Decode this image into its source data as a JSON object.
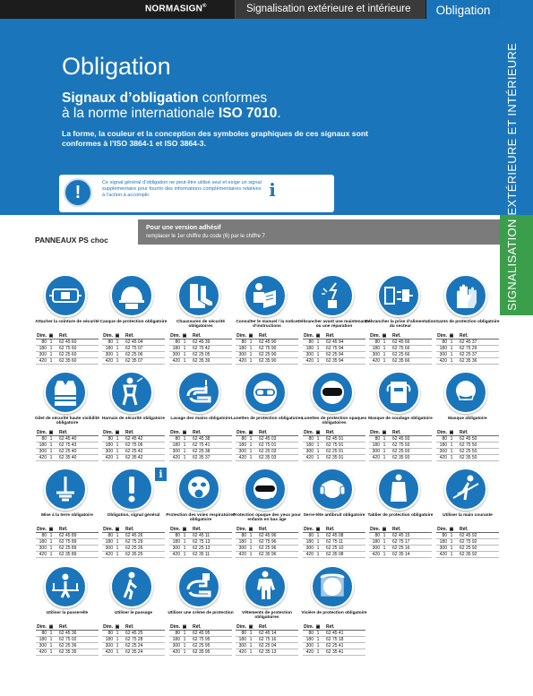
{
  "header": {
    "brand": "NORMASIGN",
    "brand_mark": "®",
    "subtitle": "Signalisation extérieure et intérieure",
    "category": "Obligation"
  },
  "hero": {
    "title": "Obligation",
    "sub_bold": "Signaux d’obligation",
    "sub_rest": " conformes",
    "sub_line2": "à la norme internationale ",
    "sub_iso": "ISO 7010",
    "sub_end": ".",
    "description": "La forme, la couleur et la conception des symboles graphiques de ces signaux sont conformes à l’ISO 3864-1 et ISO 3864-3."
  },
  "info": {
    "text": "Ce signal général d’obligation ne peut-être utilisé seul et exige un signal supplémentaire pour fournir des informations complémentaires relatives à l’action à accomplir.",
    "norme_1": "INFO",
    "norme_2": "NORME",
    "norme_3": "ISO 7010"
  },
  "sidebar": {
    "text": "SIGNALISATION EXTÉRIEURE ET INTÉRIEURE"
  },
  "strip": {
    "label": "PANNEAUX PS choc",
    "heading": "Pour une version adhésif",
    "sub": "remplacer le 1er chiffre du code (6) par le chiffre 7"
  },
  "table_headers": {
    "dim": "Dim.",
    "ref": "Réf."
  },
  "signs": [
    {
      "icon": "seatbelt-icon",
      "caption": "Attacher la ceinture de sécurité",
      "rows": [
        [
          "80",
          "1",
          "62 45 60"
        ],
        [
          "180",
          "1",
          "62 75 60"
        ],
        [
          "300",
          "1",
          "62 25 60"
        ],
        [
          "420",
          "1",
          "62 35 60"
        ]
      ]
    },
    {
      "icon": "helmet-icon",
      "caption": "Casque de protection obligatoire",
      "rows": [
        [
          "80",
          "1",
          "62 45 04"
        ],
        [
          "180",
          "1",
          "62 75 07"
        ],
        [
          "300",
          "1",
          "62 25 06"
        ],
        [
          "420",
          "1",
          "62 35 07"
        ]
      ]
    },
    {
      "icon": "boots-icon",
      "caption": "Chaussures de sécurité obligatoires",
      "rows": [
        [
          "80",
          "1",
          "62 45 39"
        ],
        [
          "180",
          "1",
          "62 75 42"
        ],
        [
          "300",
          "1",
          "62 25 05"
        ],
        [
          "420",
          "1",
          "62 35 39"
        ]
      ]
    },
    {
      "icon": "manual-icon",
      "caption": "Consulter le manuel / la notice d’instructions",
      "rows": [
        [
          "80",
          "1",
          "62 45 90"
        ],
        [
          "180",
          "1",
          "62 75 90"
        ],
        [
          "300",
          "1",
          "62 25 90"
        ],
        [
          "420",
          "1",
          "62 35 90"
        ]
      ]
    },
    {
      "icon": "disconnect-icon",
      "caption": "Débrancher avant une maintenance ou une réparation",
      "rows": [
        [
          "80",
          "1",
          "62 45 94"
        ],
        [
          "180",
          "1",
          "62 75 94"
        ],
        [
          "300",
          "1",
          "62 25 94"
        ],
        [
          "420",
          "1",
          "62 35 94"
        ]
      ]
    },
    {
      "icon": "unplug-icon",
      "caption": "Débrancher la prise d’alimentation du secteur",
      "rows": [
        [
          "80",
          "1",
          "62 45 66"
        ],
        [
          "180",
          "1",
          "62 75 66"
        ],
        [
          "300",
          "1",
          "62 25 66"
        ],
        [
          "420",
          "1",
          "62 35 66"
        ]
      ]
    },
    {
      "icon": "gloves-icon",
      "caption": "Gants de protection obligatoire",
      "rows": [
        [
          "80",
          "1",
          "62 45 37"
        ],
        [
          "180",
          "1",
          "62 75 29"
        ],
        [
          "300",
          "1",
          "62 25 37"
        ],
        [
          "420",
          "1",
          "62 35 36"
        ]
      ]
    },
    {
      "icon": "vest-icon",
      "caption": "Gilet de sécurité haute visibilité obligatoire",
      "rows": [
        [
          "80",
          "1",
          "62 45 40"
        ],
        [
          "180",
          "1",
          "62 75 43"
        ],
        [
          "300",
          "1",
          "62 25 40"
        ],
        [
          "420",
          "1",
          "62 35 40"
        ]
      ]
    },
    {
      "icon": "harness-icon",
      "caption": "Harnais de sécurité obligatoire",
      "rows": [
        [
          "80",
          "1",
          "62 45 42"
        ],
        [
          "180",
          "1",
          "62 75 06"
        ],
        [
          "300",
          "1",
          "62 25 42"
        ],
        [
          "420",
          "1",
          "62 35 42"
        ]
      ]
    },
    {
      "icon": "wash-hands-icon",
      "caption": "Lavage des mains obligatoire",
      "rows": [
        [
          "80",
          "1",
          "62 45 38"
        ],
        [
          "180",
          "1",
          "62 75 41"
        ],
        [
          "300",
          "1",
          "62 25 38"
        ],
        [
          "420",
          "1",
          "62 35 37"
        ]
      ]
    },
    {
      "icon": "goggles-icon",
      "caption": "Lunettes de protection obligatoires",
      "rows": [
        [
          "80",
          "1",
          "62 45 03"
        ],
        [
          "180",
          "1",
          "62 75 01"
        ],
        [
          "300",
          "1",
          "62 25 03"
        ],
        [
          "420",
          "1",
          "62 35 03"
        ]
      ]
    },
    {
      "icon": "opaque-goggles-icon",
      "caption": "Lunettes de protection opaques obligatoires",
      "rows": [
        [
          "80",
          "1",
          "62 45 91"
        ],
        [
          "180",
          "1",
          "62 75 91"
        ],
        [
          "300",
          "1",
          "62 25 91"
        ],
        [
          "420",
          "1",
          "62 35 91"
        ]
      ]
    },
    {
      "icon": "welding-mask-icon",
      "caption": "Masque de soudage obligatoire",
      "rows": [
        [
          "80",
          "1",
          "62 45 93"
        ],
        [
          "180",
          "1",
          "62 75 93"
        ],
        [
          "300",
          "1",
          "62 25 93"
        ],
        [
          "420",
          "1",
          "62 35 93"
        ]
      ]
    },
    {
      "icon": "face-mask-icon",
      "caption": "Masque obligatoire",
      "rows": [
        [
          "80",
          "1",
          "62 45 50"
        ],
        [
          "180",
          "1",
          "62 75 50"
        ],
        [
          "300",
          "1",
          "62 25 50"
        ],
        [
          "420",
          "1",
          "62 35 50"
        ]
      ]
    },
    {
      "icon": "ground-icon",
      "caption": "Mise à la terre obligatoire",
      "rows": [
        [
          "80",
          "1",
          "62 45 89"
        ],
        [
          "180",
          "1",
          "62 75 89"
        ],
        [
          "300",
          "1",
          "62 25 89"
        ],
        [
          "420",
          "1",
          "62 35 89"
        ]
      ]
    },
    {
      "icon": "exclamation-icon",
      "caption": "Obligation, signal général",
      "rows": [
        [
          "80",
          "1",
          "62 45 26"
        ],
        [
          "180",
          "1",
          "62 75 29"
        ],
        [
          "300",
          "1",
          "62 25 26"
        ],
        [
          "420",
          "1",
          "62 35 25"
        ]
      ]
    },
    {
      "icon": "respirator-icon",
      "caption": "Protection des voies respiratoires obligatoire",
      "rows": [
        [
          "80",
          "1",
          "62 45 11"
        ],
        [
          "180",
          "1",
          "62 75 13"
        ],
        [
          "300",
          "1",
          "62 25 13"
        ],
        [
          "420",
          "1",
          "62 35 11"
        ]
      ]
    },
    {
      "icon": "child-protection-icon",
      "caption": "Protection opaque des yeux pour enfants en bas âge",
      "rows": [
        [
          "80",
          "1",
          "62 45 96"
        ],
        [
          "180",
          "1",
          "62 75 96"
        ],
        [
          "300",
          "1",
          "62 25 96"
        ],
        [
          "420",
          "1",
          "62 35 96"
        ]
      ]
    },
    {
      "icon": "headband-icon",
      "caption": "Serre-tête antibruit obligatoire",
      "rows": [
        [
          "80",
          "1",
          "62 45 08"
        ],
        [
          "180",
          "1",
          "62 75 11"
        ],
        [
          "300",
          "1",
          "62 25 10"
        ],
        [
          "420",
          "1",
          "62 35 08"
        ]
      ]
    },
    {
      "icon": "apron-icon",
      "caption": "Tablier de protection obligatoire",
      "rows": [
        [
          "80",
          "1",
          "62 45 15"
        ],
        [
          "180",
          "1",
          "62 75 17"
        ],
        [
          "300",
          "1",
          "62 25 16"
        ],
        [
          "420",
          "1",
          "62 35 14"
        ]
      ]
    },
    {
      "icon": "handrail-icon",
      "caption": "Utiliser la main courante",
      "rows": [
        [
          "80",
          "1",
          "62 45 92"
        ],
        [
          "180",
          "1",
          "62 75 92"
        ],
        [
          "300",
          "1",
          "62 25 92"
        ],
        [
          "420",
          "1",
          "62 35 92"
        ]
      ]
    },
    {
      "icon": "footbridge-icon",
      "caption": "Utiliser la passerelle",
      "rows": [
        [
          "80",
          "1",
          "62 45 36"
        ],
        [
          "180",
          "1",
          "62 75 02"
        ],
        [
          "300",
          "1",
          "62 25 36"
        ],
        [
          "420",
          "1",
          "62 35 35"
        ]
      ]
    },
    {
      "icon": "walkway-icon",
      "caption": "Utiliser le passage",
      "rows": [
        [
          "80",
          "1",
          "62 45 25"
        ],
        [
          "180",
          "1",
          "62 75 28"
        ],
        [
          "300",
          "1",
          "62 25 24"
        ],
        [
          "420",
          "1",
          "62 35 24"
        ]
      ]
    },
    {
      "icon": "hand-cream-icon",
      "caption": "Utiliser une crème de protection",
      "rows": [
        [
          "80",
          "1",
          "62 45 95"
        ],
        [
          "180",
          "1",
          "62 75 95"
        ],
        [
          "300",
          "1",
          "62 25 95"
        ],
        [
          "420",
          "1",
          "62 35 95"
        ]
      ]
    },
    {
      "icon": "coverall-icon",
      "caption": "Vêtements de protection obligatoires",
      "rows": [
        [
          "80",
          "1",
          "62 45 14"
        ],
        [
          "180",
          "1",
          "62 75 16"
        ],
        [
          "300",
          "1",
          "62 25 04"
        ],
        [
          "420",
          "1",
          "62 35 13"
        ]
      ]
    },
    {
      "icon": "face-shield-icon",
      "caption": "Visière de protection obligatoire",
      "rows": [
        [
          "80",
          "1",
          "62 45 41"
        ],
        [
          "180",
          "1",
          "62 75 18"
        ],
        [
          "300",
          "1",
          "62 25 41"
        ],
        [
          "420",
          "1",
          "62 35 41"
        ]
      ]
    }
  ],
  "badge": "i",
  "colors": {
    "brand_blue": "#1b75bb",
    "side_green": "#3a9e4b",
    "header_dark": "#1c1c1c"
  }
}
